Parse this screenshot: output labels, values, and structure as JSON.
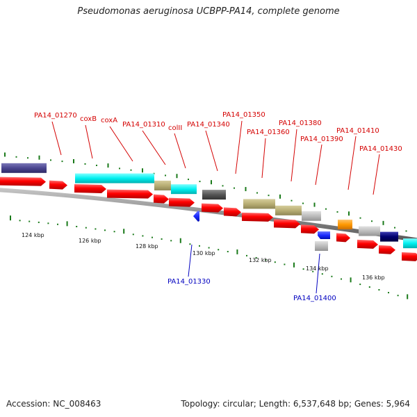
{
  "header": {
    "title": "Pseudomonas aeruginosa UCBPP-PA14, complete genome"
  },
  "footer": {
    "accession": "Accession: NC_008463",
    "summary": "Topology: circular; Length: 6,537,648 bp; Genes: 5,964"
  },
  "map": {
    "scale_labels": [
      "124 kbp",
      "126 kbp",
      "128 kbp",
      "130 kbp",
      "132 kbp",
      "134 kbp",
      "136 kbp"
    ],
    "forward_gene_labels": [
      "PA14_01270",
      "coxB",
      "coxA",
      "PA14_01310",
      "colII",
      "PA14_01340",
      "PA14_01350",
      "PA14_01360",
      "PA14_01380",
      "PA14_01390",
      "PA14_01410",
      "PA14_01430"
    ],
    "reverse_gene_labels": [
      "PA14_01330",
      "PA14_01400"
    ],
    "colors": {
      "cds": "#ff0000",
      "cyan_feature": "#00ffff",
      "khaki_feature": "#b8ae74",
      "purple_feature": "#4b4690",
      "navy_feature": "#00006e",
      "grey_feature": "#555555",
      "light_grey_feature": "#bcbcbc",
      "orange_feature": "#ff9900",
      "blue_feature": "#1c2cff",
      "tick": "#1a7a1a",
      "forward_label": "#d40000",
      "reverse_label": "#0000c0",
      "backbone": "#777777"
    }
  }
}
